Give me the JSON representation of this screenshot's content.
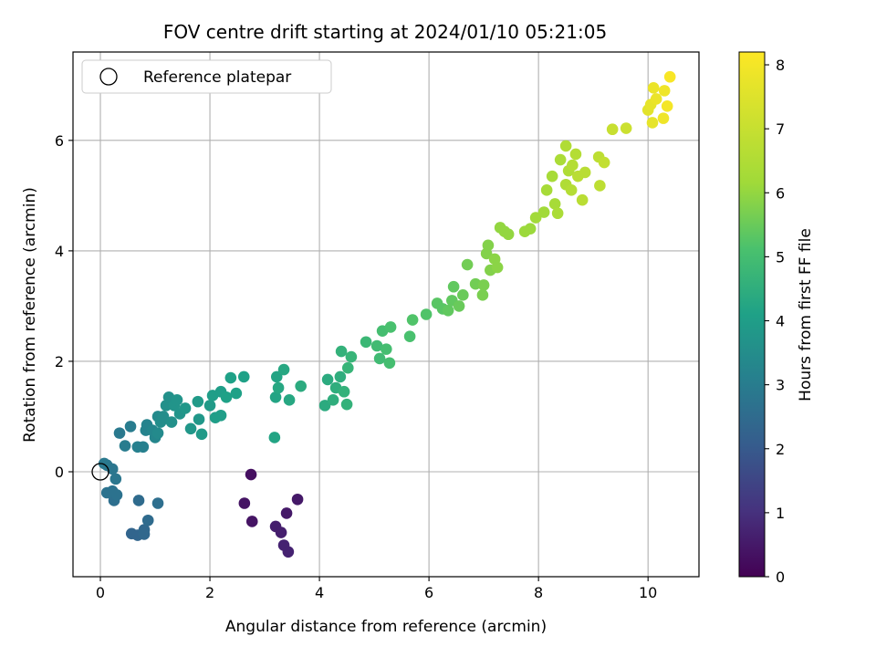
{
  "chart_data": {
    "type": "scatter",
    "title": "FOV centre drift starting at 2024/01/10 05:21:05",
    "xlabel": "Angular distance from reference (arcmin)",
    "ylabel": "Rotation from reference (arcmin)",
    "xlim": [
      -0.5,
      10.93
    ],
    "ylim": [
      -1.9,
      7.6
    ],
    "xticks": [
      0,
      2,
      4,
      6,
      8,
      10
    ],
    "yticks": [
      0,
      2,
      4,
      6
    ],
    "grid": true,
    "legend": {
      "position": "top-left",
      "entries": [
        "Reference platepar"
      ]
    },
    "reference_point": {
      "x": 0,
      "y": 0
    },
    "colorbar": {
      "label": "Hours from first FF file",
      "colormap": "viridis",
      "range": [
        0,
        8.2
      ],
      "ticks": [
        0,
        1,
        2,
        3,
        4,
        5,
        6,
        7,
        8
      ]
    },
    "points": [
      {
        "x": 2.75,
        "y": -0.05,
        "c": 0.3
      },
      {
        "x": 2.63,
        "y": -0.57,
        "c": 0.4
      },
      {
        "x": 2.77,
        "y": -0.9,
        "c": 0.4
      },
      {
        "x": 3.6,
        "y": -0.5,
        "c": 0.5
      },
      {
        "x": 3.4,
        "y": -0.75,
        "c": 0.5
      },
      {
        "x": 3.2,
        "y": -0.99,
        "c": 0.6
      },
      {
        "x": 3.3,
        "y": -1.1,
        "c": 0.6
      },
      {
        "x": 3.35,
        "y": -1.33,
        "c": 0.7
      },
      {
        "x": 3.43,
        "y": -1.45,
        "c": 0.7
      },
      {
        "x": 0.57,
        "y": -1.12,
        "c": 2.3
      },
      {
        "x": 0.68,
        "y": -1.15,
        "c": 2.3
      },
      {
        "x": 0.8,
        "y": -1.05,
        "c": 2.4
      },
      {
        "x": 0.8,
        "y": -1.13,
        "c": 2.4
      },
      {
        "x": 0.87,
        "y": -0.88,
        "c": 2.5
      },
      {
        "x": 0.7,
        "y": -0.52,
        "c": 2.5
      },
      {
        "x": 1.05,
        "y": -0.57,
        "c": 2.6
      },
      {
        "x": 0.25,
        "y": -0.52,
        "c": 2.6
      },
      {
        "x": 0.3,
        "y": -0.42,
        "c": 2.7
      },
      {
        "x": 0.22,
        "y": -0.35,
        "c": 2.7
      },
      {
        "x": 0.12,
        "y": -0.38,
        "c": 2.7
      },
      {
        "x": 0.28,
        "y": -0.13,
        "c": 2.8
      },
      {
        "x": 0.22,
        "y": 0.05,
        "c": 2.8
      },
      {
        "x": 0.12,
        "y": 0.12,
        "c": 2.8
      },
      {
        "x": 0.07,
        "y": 0.15,
        "c": 2.9
      },
      {
        "x": 0.35,
        "y": 0.7,
        "c": 2.9
      },
      {
        "x": 0.45,
        "y": 0.47,
        "c": 3.0
      },
      {
        "x": 0.55,
        "y": 0.82,
        "c": 3.0
      },
      {
        "x": 0.68,
        "y": 0.45,
        "c": 3.1
      },
      {
        "x": 0.78,
        "y": 0.45,
        "c": 3.1
      },
      {
        "x": 0.83,
        "y": 0.75,
        "c": 3.2
      },
      {
        "x": 0.85,
        "y": 0.85,
        "c": 3.2
      },
      {
        "x": 0.95,
        "y": 0.75,
        "c": 3.3
      },
      {
        "x": 1.0,
        "y": 0.62,
        "c": 3.3
      },
      {
        "x": 1.05,
        "y": 0.7,
        "c": 3.4
      },
      {
        "x": 1.05,
        "y": 1.0,
        "c": 3.4
      },
      {
        "x": 1.1,
        "y": 0.9,
        "c": 3.5
      },
      {
        "x": 1.15,
        "y": 1.0,
        "c": 3.5
      },
      {
        "x": 1.2,
        "y": 1.2,
        "c": 3.6
      },
      {
        "x": 1.25,
        "y": 1.35,
        "c": 3.6
      },
      {
        "x": 1.3,
        "y": 0.9,
        "c": 3.6
      },
      {
        "x": 1.35,
        "y": 1.2,
        "c": 3.7
      },
      {
        "x": 1.4,
        "y": 1.3,
        "c": 3.7
      },
      {
        "x": 1.45,
        "y": 1.05,
        "c": 3.7
      },
      {
        "x": 1.55,
        "y": 1.15,
        "c": 3.8
      },
      {
        "x": 1.65,
        "y": 0.78,
        "c": 3.8
      },
      {
        "x": 1.8,
        "y": 0.95,
        "c": 3.8
      },
      {
        "x": 1.85,
        "y": 0.68,
        "c": 3.9
      },
      {
        "x": 1.78,
        "y": 1.27,
        "c": 3.9
      },
      {
        "x": 2.0,
        "y": 1.2,
        "c": 3.9
      },
      {
        "x": 2.05,
        "y": 1.38,
        "c": 4.0
      },
      {
        "x": 2.1,
        "y": 0.98,
        "c": 4.0
      },
      {
        "x": 2.2,
        "y": 1.45,
        "c": 4.0
      },
      {
        "x": 2.2,
        "y": 1.02,
        "c": 4.0
      },
      {
        "x": 2.3,
        "y": 1.35,
        "c": 4.1
      },
      {
        "x": 2.38,
        "y": 1.7,
        "c": 4.1
      },
      {
        "x": 2.48,
        "y": 1.42,
        "c": 4.1
      },
      {
        "x": 2.62,
        "y": 1.72,
        "c": 4.1
      },
      {
        "x": 3.18,
        "y": 0.62,
        "c": 4.2
      },
      {
        "x": 3.2,
        "y": 1.35,
        "c": 4.2
      },
      {
        "x": 3.22,
        "y": 1.72,
        "c": 4.2
      },
      {
        "x": 3.25,
        "y": 1.52,
        "c": 4.3
      },
      {
        "x": 3.35,
        "y": 1.85,
        "c": 4.3
      },
      {
        "x": 3.45,
        "y": 1.3,
        "c": 4.3
      },
      {
        "x": 3.66,
        "y": 1.55,
        "c": 4.4
      },
      {
        "x": 4.1,
        "y": 1.2,
        "c": 4.4
      },
      {
        "x": 4.15,
        "y": 1.67,
        "c": 4.4
      },
      {
        "x": 4.25,
        "y": 1.3,
        "c": 4.5
      },
      {
        "x": 4.3,
        "y": 1.52,
        "c": 4.5
      },
      {
        "x": 4.38,
        "y": 1.72,
        "c": 4.5
      },
      {
        "x": 4.4,
        "y": 2.18,
        "c": 4.6
      },
      {
        "x": 4.45,
        "y": 1.45,
        "c": 4.6
      },
      {
        "x": 4.5,
        "y": 1.22,
        "c": 4.6
      },
      {
        "x": 4.52,
        "y": 1.88,
        "c": 4.7
      },
      {
        "x": 4.58,
        "y": 2.08,
        "c": 4.7
      },
      {
        "x": 4.85,
        "y": 2.35,
        "c": 4.8
      },
      {
        "x": 5.05,
        "y": 2.28,
        "c": 4.9
      },
      {
        "x": 5.1,
        "y": 2.05,
        "c": 4.9
      },
      {
        "x": 5.15,
        "y": 2.55,
        "c": 5.0
      },
      {
        "x": 5.22,
        "y": 2.22,
        "c": 5.0
      },
      {
        "x": 5.28,
        "y": 1.97,
        "c": 5.0
      },
      {
        "x": 5.3,
        "y": 2.62,
        "c": 5.1
      },
      {
        "x": 5.65,
        "y": 2.45,
        "c": 5.1
      },
      {
        "x": 5.7,
        "y": 2.75,
        "c": 5.2
      },
      {
        "x": 5.95,
        "y": 2.85,
        "c": 5.2
      },
      {
        "x": 6.15,
        "y": 3.05,
        "c": 5.3
      },
      {
        "x": 6.25,
        "y": 2.95,
        "c": 5.3
      },
      {
        "x": 6.35,
        "y": 2.92,
        "c": 5.4
      },
      {
        "x": 6.42,
        "y": 3.1,
        "c": 5.4
      },
      {
        "x": 6.45,
        "y": 3.35,
        "c": 5.4
      },
      {
        "x": 6.55,
        "y": 3.0,
        "c": 5.5
      },
      {
        "x": 6.62,
        "y": 3.2,
        "c": 5.5
      },
      {
        "x": 6.7,
        "y": 3.75,
        "c": 5.6
      },
      {
        "x": 6.85,
        "y": 3.4,
        "c": 5.6
      },
      {
        "x": 6.98,
        "y": 3.2,
        "c": 5.7
      },
      {
        "x": 7.0,
        "y": 3.38,
        "c": 5.7
      },
      {
        "x": 7.05,
        "y": 3.95,
        "c": 5.8
      },
      {
        "x": 7.08,
        "y": 4.1,
        "c": 5.8
      },
      {
        "x": 7.12,
        "y": 3.65,
        "c": 5.8
      },
      {
        "x": 7.2,
        "y": 3.85,
        "c": 5.9
      },
      {
        "x": 7.25,
        "y": 3.7,
        "c": 5.9
      },
      {
        "x": 7.3,
        "y": 4.42,
        "c": 6.0
      },
      {
        "x": 7.38,
        "y": 4.35,
        "c": 6.0
      },
      {
        "x": 7.45,
        "y": 4.3,
        "c": 6.0
      },
      {
        "x": 7.75,
        "y": 4.35,
        "c": 6.1
      },
      {
        "x": 7.85,
        "y": 4.4,
        "c": 6.1
      },
      {
        "x": 7.95,
        "y": 4.6,
        "c": 6.2
      },
      {
        "x": 8.1,
        "y": 4.7,
        "c": 6.2
      },
      {
        "x": 8.15,
        "y": 5.1,
        "c": 6.3
      },
      {
        "x": 8.25,
        "y": 5.35,
        "c": 6.3
      },
      {
        "x": 8.3,
        "y": 4.85,
        "c": 6.3
      },
      {
        "x": 8.35,
        "y": 4.68,
        "c": 6.4
      },
      {
        "x": 8.4,
        "y": 5.65,
        "c": 6.4
      },
      {
        "x": 8.5,
        "y": 5.9,
        "c": 6.5
      },
      {
        "x": 8.5,
        "y": 5.2,
        "c": 6.5
      },
      {
        "x": 8.55,
        "y": 5.45,
        "c": 6.5
      },
      {
        "x": 8.6,
        "y": 5.1,
        "c": 6.6
      },
      {
        "x": 8.62,
        "y": 5.55,
        "c": 6.6
      },
      {
        "x": 8.68,
        "y": 5.75,
        "c": 6.6
      },
      {
        "x": 8.72,
        "y": 5.35,
        "c": 6.7
      },
      {
        "x": 8.8,
        "y": 4.92,
        "c": 6.7
      },
      {
        "x": 8.85,
        "y": 5.42,
        "c": 6.7
      },
      {
        "x": 9.1,
        "y": 5.7,
        "c": 6.8
      },
      {
        "x": 9.12,
        "y": 5.18,
        "c": 6.8
      },
      {
        "x": 9.2,
        "y": 5.6,
        "c": 6.9
      },
      {
        "x": 9.35,
        "y": 6.2,
        "c": 7.0
      },
      {
        "x": 9.6,
        "y": 6.22,
        "c": 7.1
      },
      {
        "x": 10.0,
        "y": 6.55,
        "c": 7.6
      },
      {
        "x": 10.05,
        "y": 6.65,
        "c": 7.7
      },
      {
        "x": 10.08,
        "y": 6.32,
        "c": 7.7
      },
      {
        "x": 10.1,
        "y": 6.95,
        "c": 7.8
      },
      {
        "x": 10.15,
        "y": 6.75,
        "c": 7.8
      },
      {
        "x": 10.28,
        "y": 6.4,
        "c": 7.9
      },
      {
        "x": 10.3,
        "y": 6.9,
        "c": 7.9
      },
      {
        "x": 10.35,
        "y": 6.62,
        "c": 8.0
      },
      {
        "x": 10.4,
        "y": 7.15,
        "c": 8.1
      }
    ]
  }
}
